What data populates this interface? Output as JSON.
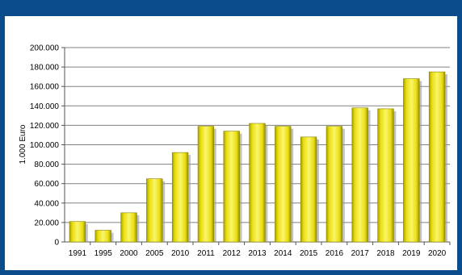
{
  "chart_data": {
    "type": "bar",
    "title": "",
    "xlabel": "",
    "ylabel": "1.000 Euro",
    "ylim": [
      0,
      200000
    ],
    "yticks": [
      "0",
      "20.000",
      "40.000",
      "60.000",
      "80.000",
      "100.000",
      "120.000",
      "140.000",
      "160.000",
      "180.000",
      "200.000"
    ],
    "categories": [
      "1991",
      "1995",
      "2000",
      "2005",
      "2010",
      "2011",
      "2012",
      "2013",
      "2014",
      "2015",
      "2016",
      "2017",
      "2018",
      "2019",
      "2020"
    ],
    "values": [
      21000,
      12000,
      30000,
      65000,
      92000,
      119000,
      114000,
      122000,
      119000,
      108000,
      119000,
      138000,
      137000,
      168000,
      175000
    ],
    "bar_color": "#f0e81e",
    "grid": true,
    "legend": "none"
  }
}
